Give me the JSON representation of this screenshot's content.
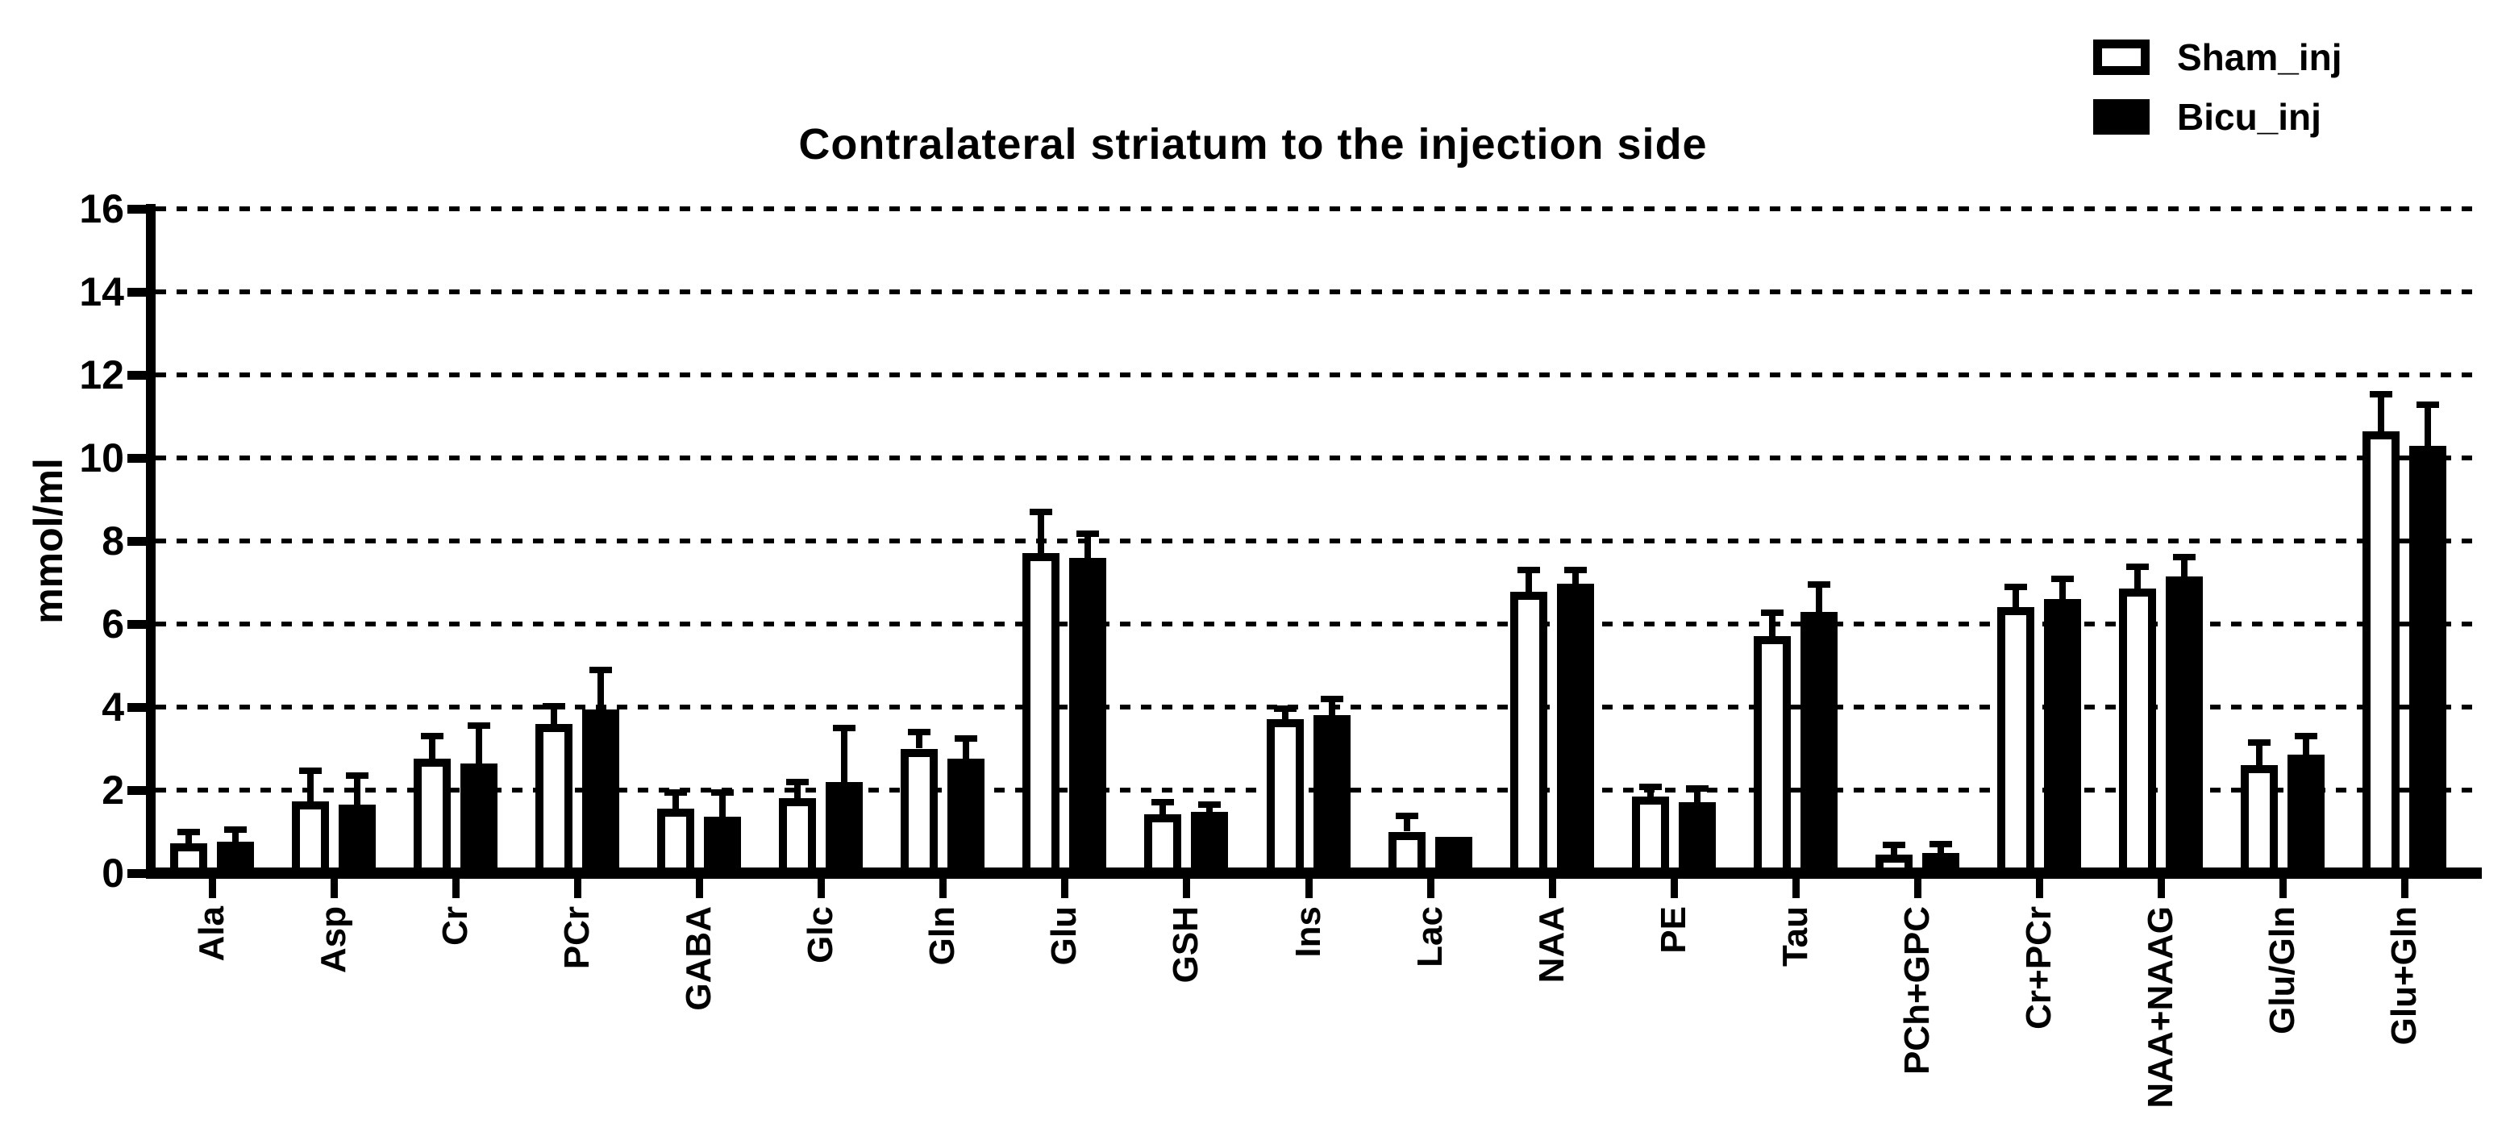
{
  "chart_data": {
    "type": "bar",
    "title": "Contralateral striatum to the injection side",
    "ylabel": "mmol/ml",
    "ylim": [
      0,
      16
    ],
    "ytick_step": 2,
    "yticks": [
      "0",
      "2",
      "4",
      "6",
      "8",
      "10",
      "12",
      "14",
      "16"
    ],
    "grid": "dotted-horizontal",
    "legend_position": "top-right",
    "categories": [
      "Ala",
      "Asp",
      "Cr",
      "PCr",
      "GABA",
      "Glc",
      "Gln",
      "Glu",
      "GSH",
      "Ins",
      "Lac",
      "NAA",
      "PE",
      "Tau",
      "PCh+GPC",
      "Cr+PCr",
      "NAA+NAAG",
      "Glu/Gln",
      "Glu+Gln"
    ],
    "series": [
      {
        "name": "Sham_inj",
        "fill": "#ffffff",
        "values": [
          0.72,
          1.72,
          2.75,
          3.6,
          1.55,
          1.8,
          3.0,
          7.7,
          1.42,
          3.7,
          1.0,
          6.78,
          1.85,
          5.7,
          0.44,
          6.4,
          6.85,
          2.6,
          10.65
        ],
        "errors_up": [
          0.27,
          0.75,
          0.55,
          0.42,
          0.4,
          0.4,
          0.4,
          1.0,
          0.28,
          0.27,
          0.37,
          0.53,
          0.22,
          0.57,
          0.23,
          0.5,
          0.52,
          0.55,
          0.88
        ]
      },
      {
        "name": "Bicu_inj",
        "fill": "#000000",
        "values": [
          0.75,
          1.65,
          2.65,
          3.95,
          1.35,
          2.2,
          2.75,
          7.6,
          1.48,
          3.8,
          0.88,
          6.98,
          1.7,
          6.3,
          0.49,
          6.6,
          7.15,
          2.85,
          10.3
        ],
        "errors_up": [
          0.3,
          0.7,
          0.9,
          0.95,
          0.6,
          1.3,
          0.5,
          0.58,
          0.18,
          0.4,
          0.0,
          0.32,
          0.33,
          0.66,
          0.2,
          0.48,
          0.46,
          0.45,
          0.98
        ]
      }
    ],
    "colors": {
      "axis": "#000000",
      "background": "#ffffff",
      "bar_outline": "#000000"
    }
  }
}
